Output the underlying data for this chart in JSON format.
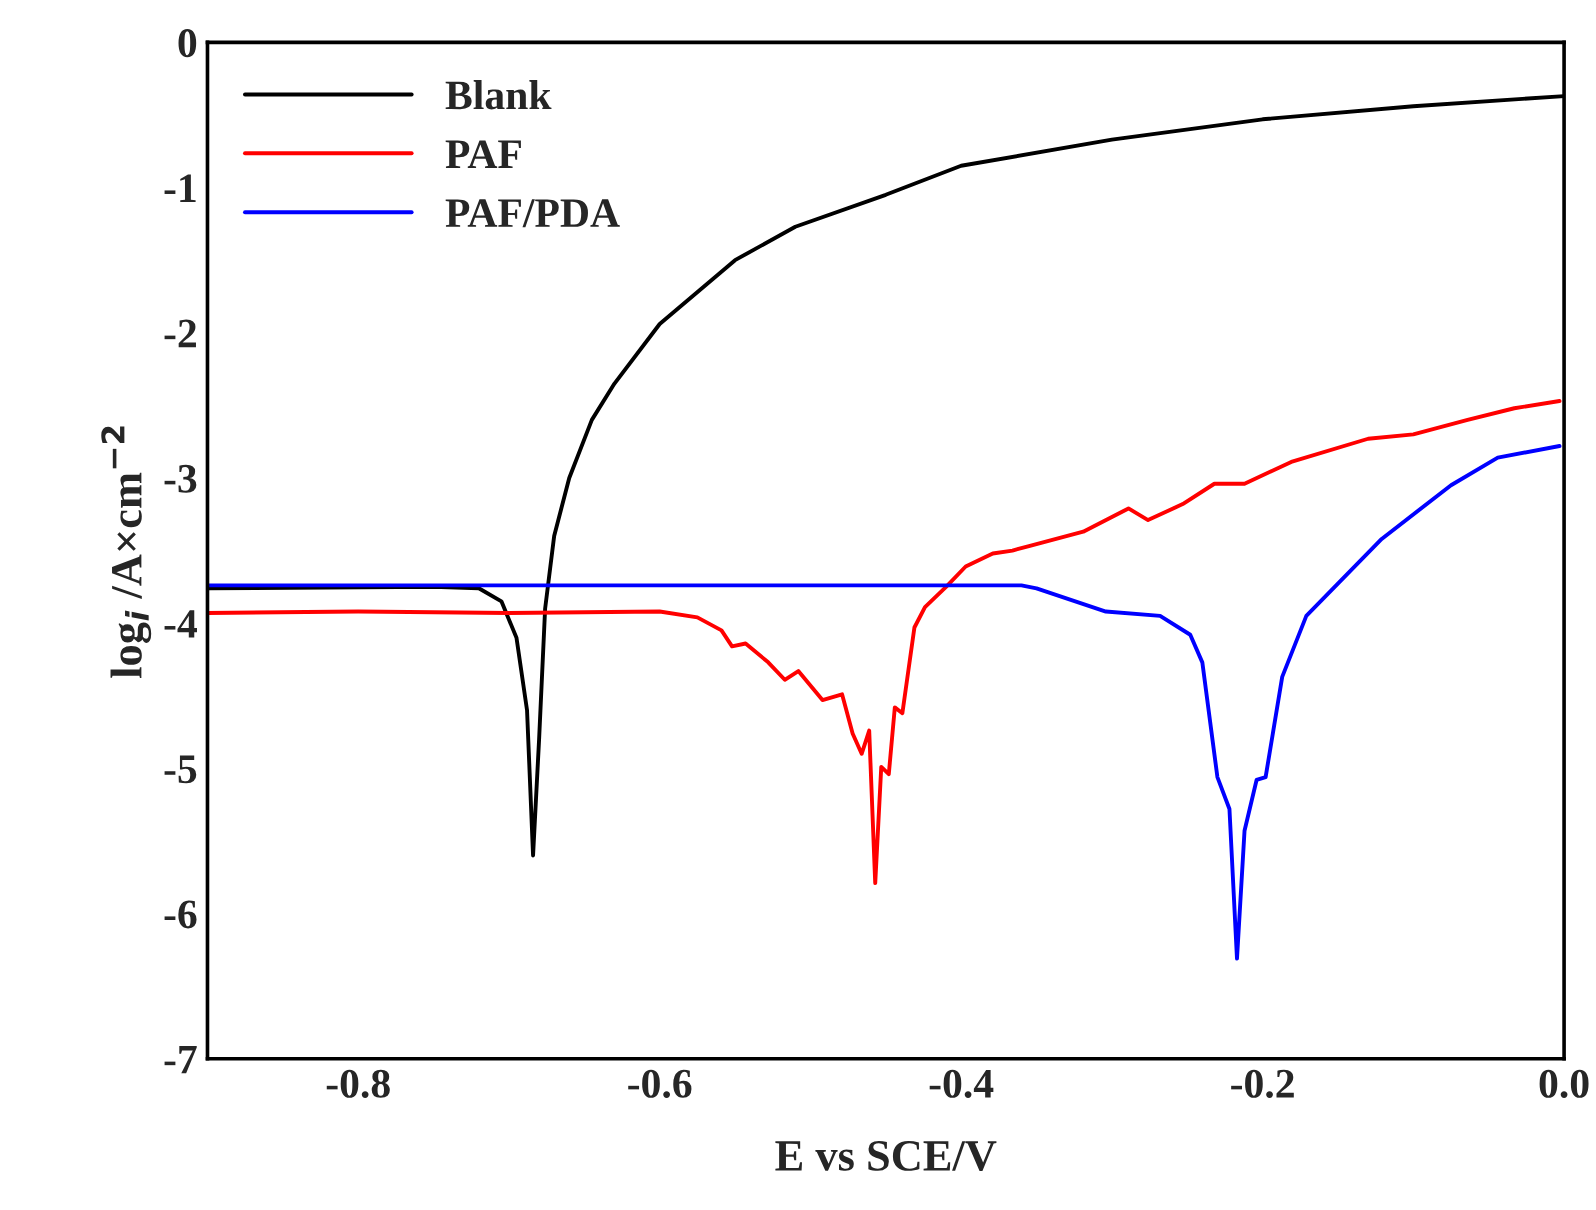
{
  "chart_data": {
    "type": "line",
    "xlabel": "E vs SCE/V",
    "ylabel": "log$_{i}$ /A×cm$^{−2}$",
    "xlim": [
      -0.9,
      0.0
    ],
    "ylim": [
      -7,
      0
    ],
    "xticks": [
      -0.8,
      -0.6,
      -0.4,
      -0.2,
      {
        "value": 0.0,
        "label": "0.0"
      }
    ],
    "yticks": [
      -7,
      -6,
      -5,
      -4,
      -3,
      -2,
      -1,
      0
    ],
    "legend": "top left",
    "grid": false,
    "marker": "none",
    "line_style": "solid",
    "series": [
      {
        "name": "Blank",
        "color": "#000000",
        "x": [
          -0.9,
          -0.75,
          -0.72,
          -0.705,
          -0.695,
          -0.688,
          -0.684,
          -0.68,
          -0.676,
          -0.67,
          -0.66,
          -0.645,
          -0.63,
          -0.6,
          -0.55,
          -0.51,
          -0.45,
          -0.4,
          -0.3,
          -0.2,
          -0.1,
          0.0
        ],
        "values": [
          -3.76,
          -3.75,
          -3.76,
          -3.85,
          -4.1,
          -4.6,
          -5.6,
          -4.8,
          -3.9,
          -3.4,
          -3.0,
          -2.6,
          -2.35,
          -1.94,
          -1.5,
          -1.27,
          -1.05,
          -0.85,
          -0.67,
          -0.53,
          -0.44,
          -0.37
        ]
      },
      {
        "name": "PAF",
        "color": "#ff0000",
        "x": [
          -0.9,
          -0.8,
          -0.7,
          -0.6,
          -0.575,
          -0.559,
          -0.552,
          -0.543,
          -0.528,
          -0.517,
          -0.508,
          -0.492,
          -0.479,
          -0.472,
          -0.466,
          -0.461,
          -0.457,
          -0.453,
          -0.448,
          -0.444,
          -0.439,
          -0.431,
          -0.424,
          -0.41,
          -0.397,
          -0.379,
          -0.366,
          -0.355,
          -0.319,
          -0.289,
          -0.276,
          -0.253,
          -0.232,
          -0.212,
          -0.181,
          -0.13,
          -0.1,
          -0.064,
          -0.033,
          -0.003
        ],
        "values": [
          -3.93,
          -3.92,
          -3.93,
          -3.92,
          -3.96,
          -4.05,
          -4.16,
          -4.14,
          -4.27,
          -4.39,
          -4.33,
          -4.53,
          -4.49,
          -4.76,
          -4.9,
          -4.74,
          -5.79,
          -4.99,
          -5.04,
          -4.58,
          -4.62,
          -4.03,
          -3.89,
          -3.75,
          -3.61,
          -3.52,
          -3.5,
          -3.47,
          -3.37,
          -3.21,
          -3.29,
          -3.18,
          -3.04,
          -3.04,
          -2.89,
          -2.73,
          -2.7,
          -2.6,
          -2.52,
          -2.47
        ]
      },
      {
        "name": "PAF/PDA",
        "color": "#0000ff",
        "x": [
          -0.9,
          -0.6,
          -0.36,
          -0.35,
          -0.304,
          -0.268,
          -0.248,
          -0.24,
          -0.23,
          -0.222,
          -0.217,
          -0.212,
          -0.204,
          -0.198,
          -0.187,
          -0.171,
          -0.121,
          -0.075,
          -0.044,
          -0.003
        ],
        "values": [
          -3.74,
          -3.74,
          -3.74,
          -3.76,
          -3.92,
          -3.95,
          -4.08,
          -4.27,
          -5.06,
          -5.28,
          -6.31,
          -5.43,
          -5.08,
          -5.06,
          -4.37,
          -3.95,
          -3.42,
          -3.05,
          -2.86,
          -2.78
        ]
      }
    ]
  }
}
